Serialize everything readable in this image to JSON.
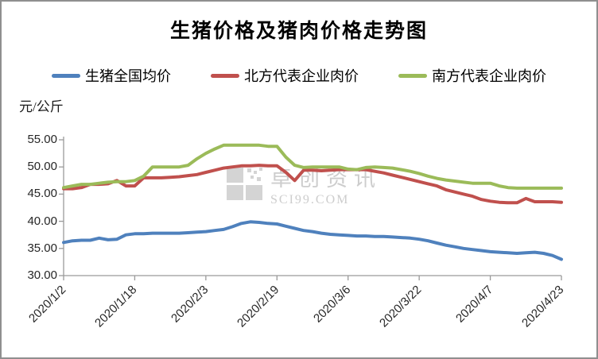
{
  "title": "生猪价格及猪肉价格走势图",
  "watermark": {
    "name": "卓创资讯",
    "domain": "SCI99.COM"
  },
  "colors": {
    "pig_avg": "#4F81BD",
    "north_pork": "#C0504D",
    "south_pork": "#9BBB59",
    "axis": "#9a9a9a",
    "tick_text": "#262626",
    "watermark_gray": "#cdcdcd"
  },
  "chart_data": {
    "type": "line",
    "title": "生猪价格及猪肉价格走势图",
    "ylabel": "元/公斤",
    "ylim": [
      30,
      55
    ],
    "y_ticks": [
      55,
      50,
      45,
      40,
      35,
      30
    ],
    "grid": false,
    "legend_position": "top",
    "x_tick_labels": [
      "2020/1/2",
      "2020/1/18",
      "2020/2/3",
      "2020/2/19",
      "2020/3/6",
      "2020/3/22",
      "2020/4/7",
      "2020/4/23"
    ],
    "x": [
      "2020/1/2",
      "2020/1/4",
      "2020/1/6",
      "2020/1/8",
      "2020/1/10",
      "2020/1/12",
      "2020/1/14",
      "2020/1/16",
      "2020/1/18",
      "2020/1/20",
      "2020/1/22",
      "2020/1/24",
      "2020/1/26",
      "2020/1/28",
      "2020/1/30",
      "2020/2/1",
      "2020/2/3",
      "2020/2/5",
      "2020/2/7",
      "2020/2/9",
      "2020/2/11",
      "2020/2/13",
      "2020/2/15",
      "2020/2/17",
      "2020/2/19",
      "2020/2/21",
      "2020/2/23",
      "2020/2/25",
      "2020/2/27",
      "2020/2/29",
      "2020/3/2",
      "2020/3/4",
      "2020/3/6",
      "2020/3/8",
      "2020/3/10",
      "2020/3/12",
      "2020/3/14",
      "2020/3/16",
      "2020/3/18",
      "2020/3/20",
      "2020/3/22",
      "2020/3/24",
      "2020/3/26",
      "2020/3/28",
      "2020/3/30",
      "2020/4/1",
      "2020/4/3",
      "2020/4/5",
      "2020/4/7",
      "2020/4/9",
      "2020/4/11",
      "2020/4/13",
      "2020/4/15",
      "2020/4/17",
      "2020/4/19",
      "2020/4/21",
      "2020/4/23"
    ],
    "series": [
      {
        "name": "生猪全国均价",
        "color": "#4F81BD",
        "values": [
          36.1,
          36.4,
          36.5,
          36.5,
          36.9,
          36.6,
          36.7,
          37.5,
          37.7,
          37.7,
          37.8,
          37.8,
          37.8,
          37.8,
          37.9,
          38.0,
          38.1,
          38.3,
          38.5,
          39.0,
          39.6,
          39.9,
          39.8,
          39.6,
          39.5,
          39.1,
          38.7,
          38.3,
          38.1,
          37.8,
          37.6,
          37.5,
          37.4,
          37.3,
          37.3,
          37.2,
          37.2,
          37.1,
          37.0,
          36.9,
          36.7,
          36.4,
          36.0,
          35.6,
          35.3,
          35.0,
          34.8,
          34.6,
          34.4,
          34.3,
          34.2,
          34.1,
          34.2,
          34.3,
          34.1,
          33.7,
          33.0
        ]
      },
      {
        "name": "北方代表企业肉价",
        "color": "#C0504D",
        "values": [
          46.0,
          46.0,
          46.2,
          46.8,
          46.8,
          46.9,
          47.5,
          46.5,
          46.5,
          48.0,
          48.0,
          48.0,
          48.1,
          48.2,
          48.4,
          48.6,
          49.0,
          49.4,
          49.8,
          50.0,
          50.2,
          50.2,
          50.3,
          50.2,
          50.2,
          49.0,
          47.5,
          49.4,
          49.4,
          49.3,
          49.4,
          49.5,
          49.5,
          49.5,
          49.5,
          49.2,
          48.9,
          48.5,
          48.1,
          47.7,
          47.3,
          46.9,
          46.5,
          45.8,
          45.4,
          45.0,
          44.6,
          44.0,
          43.7,
          43.5,
          43.4,
          43.4,
          44.2,
          43.6,
          43.6,
          43.6,
          43.5
        ]
      },
      {
        "name": "南方代表企业肉价",
        "color": "#9BBB59",
        "values": [
          46.2,
          46.5,
          46.8,
          46.8,
          47.0,
          47.2,
          47.3,
          47.3,
          47.5,
          48.3,
          50.0,
          50.0,
          50.0,
          50.0,
          50.3,
          51.5,
          52.5,
          53.3,
          54.0,
          54.0,
          54.0,
          54.0,
          54.0,
          53.8,
          53.8,
          51.8,
          50.3,
          49.9,
          50.0,
          50.0,
          50.0,
          50.0,
          49.6,
          49.5,
          49.9,
          50.0,
          49.9,
          49.8,
          49.5,
          49.2,
          48.8,
          48.3,
          47.9,
          47.6,
          47.4,
          47.2,
          47.0,
          47.0,
          47.0,
          46.5,
          46.2,
          46.1,
          46.1,
          46.1,
          46.1,
          46.1,
          46.1
        ]
      }
    ]
  }
}
